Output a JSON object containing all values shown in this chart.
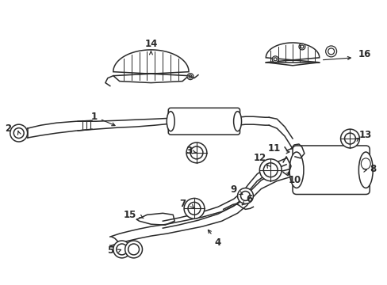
{
  "bg_color": "#ffffff",
  "fg_color": "#2a2a2a",
  "fig_width": 4.89,
  "fig_height": 3.6,
  "dpi": 100,
  "label_fontsize": 8.5,
  "lw": 1.1
}
